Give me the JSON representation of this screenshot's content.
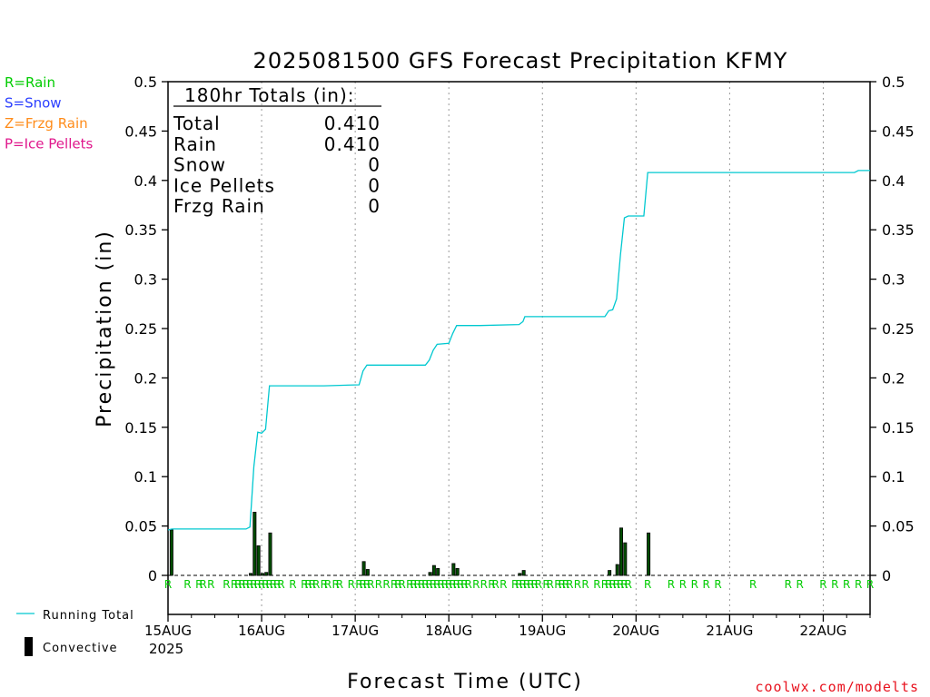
{
  "chart_data": {
    "type": "bar",
    "title": "2025081500 GFS Forecast Precipitation KFMY",
    "xlabel": "Forecast Time (UTC)",
    "ylabel": "Precipitation (in)",
    "ylim": [
      0,
      0.5
    ],
    "xlim_hours": [
      0,
      180
    ],
    "y_ticks": [
      "0",
      "0.05",
      "0.1",
      "0.15",
      "0.2",
      "0.25",
      "0.3",
      "0.35",
      "0.4",
      "0.45",
      "0.5"
    ],
    "x_ticks": [
      {
        "label": "15AUG",
        "hour": 0
      },
      {
        "label": "16AUG",
        "hour": 24
      },
      {
        "label": "17AUG",
        "hour": 48
      },
      {
        "label": "18AUG",
        "hour": 72
      },
      {
        "label": "19AUG",
        "hour": 96
      },
      {
        "label": "20AUG",
        "hour": 120
      },
      {
        "label": "21AUG",
        "hour": 144
      },
      {
        "label": "22AUG",
        "hour": 168
      }
    ],
    "year_label": "2025",
    "grid": true,
    "series": [
      {
        "name": "Running Total",
        "type": "line",
        "color": "#00c8d0",
        "points": [
          [
            0,
            0.046
          ],
          [
            1,
            0.047
          ],
          [
            3,
            0.047
          ],
          [
            8,
            0.047
          ],
          [
            14,
            0.047
          ],
          [
            20,
            0.047
          ],
          [
            21,
            0.049
          ],
          [
            22,
            0.11
          ],
          [
            23,
            0.145
          ],
          [
            24,
            0.144
          ],
          [
            25,
            0.148
          ],
          [
            26,
            0.192
          ],
          [
            30,
            0.192
          ],
          [
            40,
            0.192
          ],
          [
            49,
            0.193
          ],
          [
            50,
            0.207
          ],
          [
            51,
            0.213
          ],
          [
            56,
            0.213
          ],
          [
            66,
            0.213
          ],
          [
            67,
            0.218
          ],
          [
            68,
            0.228
          ],
          [
            69,
            0.234
          ],
          [
            72,
            0.235
          ],
          [
            73,
            0.245
          ],
          [
            74,
            0.253
          ],
          [
            80,
            0.253
          ],
          [
            90,
            0.254
          ],
          [
            91,
            0.257
          ],
          [
            91.5,
            0.262
          ],
          [
            100,
            0.262
          ],
          [
            110,
            0.262
          ],
          [
            112,
            0.262
          ],
          [
            113,
            0.268
          ],
          [
            114,
            0.269
          ],
          [
            115,
            0.28
          ],
          [
            116,
            0.325
          ],
          [
            117,
            0.362
          ],
          [
            118,
            0.364
          ],
          [
            122,
            0.364
          ],
          [
            123,
            0.408
          ],
          [
            140,
            0.408
          ],
          [
            160,
            0.408
          ],
          [
            176,
            0.408
          ],
          [
            177,
            0.41
          ],
          [
            180,
            0.41
          ]
        ]
      },
      {
        "name": "Convective",
        "type": "bar",
        "color": "#000000",
        "points": [
          [
            0.9,
            0.046
          ],
          [
            21.2,
            0.002
          ],
          [
            22.2,
            0.064
          ],
          [
            23.2,
            0.03
          ],
          [
            24.2,
            0.002
          ],
          [
            25.2,
            0.003
          ],
          [
            26.2,
            0.043
          ],
          [
            50.2,
            0.014
          ],
          [
            51.2,
            0.006
          ],
          [
            67.2,
            0.003
          ],
          [
            68.2,
            0.01
          ],
          [
            69.2,
            0.007
          ],
          [
            73.2,
            0.012
          ],
          [
            74.2,
            0.007
          ],
          [
            90.2,
            0.002
          ],
          [
            91.2,
            0.005
          ],
          [
            113.2,
            0.005
          ],
          [
            115.2,
            0.011
          ],
          [
            116.2,
            0.048
          ],
          [
            117.2,
            0.033
          ],
          [
            123.2,
            0.043
          ]
        ]
      }
    ],
    "precip_type_hours": [
      0,
      5,
      8,
      9,
      11,
      15,
      17,
      18,
      19,
      20,
      21,
      22,
      23,
      24,
      25,
      26,
      27,
      28,
      29,
      32,
      35,
      36,
      37,
      38,
      40,
      41,
      43,
      44,
      47,
      49,
      50,
      51,
      52,
      54,
      56,
      58,
      59,
      60,
      62,
      63,
      64,
      65,
      66,
      67,
      68,
      69,
      70,
      71,
      72,
      73,
      74,
      75,
      76,
      77,
      79,
      81,
      83,
      84,
      86,
      89,
      90,
      91,
      92,
      93,
      94,
      95,
      97,
      98,
      100,
      101,
      102,
      103,
      105,
      107,
      110,
      112,
      113,
      114,
      115,
      116,
      117,
      118,
      123,
      129,
      132,
      135,
      138,
      141,
      150,
      159,
      162,
      168,
      171,
      174,
      177,
      180
    ],
    "precip_type_letter": "R",
    "precip_type_color": "#00cc00"
  },
  "totals_panel": {
    "header": "180hr Totals (in):",
    "rows": [
      {
        "label": "Total",
        "value": "0.410"
      },
      {
        "label": "Rain",
        "value": "0.410"
      },
      {
        "label": "Snow",
        "value": "0"
      },
      {
        "label": "Ice Pellets",
        "value": "0"
      },
      {
        "label": "Frzg Rain",
        "value": "0"
      }
    ]
  },
  "type_legend": [
    {
      "text": "R=Rain",
      "color": "#00cc00"
    },
    {
      "text": "S=Snow",
      "color": "#2b3fff"
    },
    {
      "text": "Z=Frzg Rain",
      "color": "#ff8c1a"
    },
    {
      "text": "P=Ice Pellets",
      "color": "#e0188c"
    }
  ],
  "series_legend": [
    {
      "text": "Running Total",
      "color": "#00c8d0"
    },
    {
      "text": "Convective",
      "color": "#000000"
    }
  ],
  "credit": {
    "text": "coolwx.com/modelts",
    "color": "#e8121e"
  }
}
